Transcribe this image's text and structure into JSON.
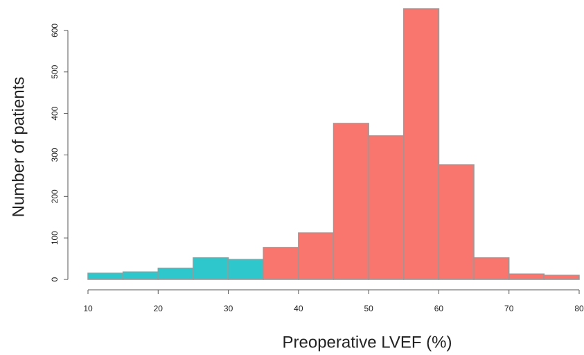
{
  "chart_data": {
    "type": "histogram",
    "x_label": "Preoperative LVEF (%)",
    "y_label": "Number of patients",
    "bins": [
      10,
      15,
      20,
      25,
      30,
      35,
      40,
      45,
      50,
      55,
      60,
      65,
      70,
      75,
      80
    ],
    "values": [
      15,
      18,
      27,
      52,
      48,
      77,
      112,
      376,
      346,
      652,
      276,
      52,
      13,
      10
    ],
    "colors": [
      "#2ec8cc",
      "#2ec8cc",
      "#2ec8cc",
      "#2ec8cc",
      "#2ec8cc",
      "#f8766d",
      "#f8766d",
      "#f8766d",
      "#f8766d",
      "#f8766d",
      "#f8766d",
      "#f8766d",
      "#f8766d",
      "#f8766d"
    ],
    "xlim": [
      10,
      80
    ],
    "xticks": [
      10,
      20,
      30,
      40,
      50,
      60,
      70,
      80
    ],
    "ylim": [
      0,
      660
    ],
    "yticks": [
      0,
      100,
      200,
      300,
      400,
      500,
      600
    ]
  }
}
